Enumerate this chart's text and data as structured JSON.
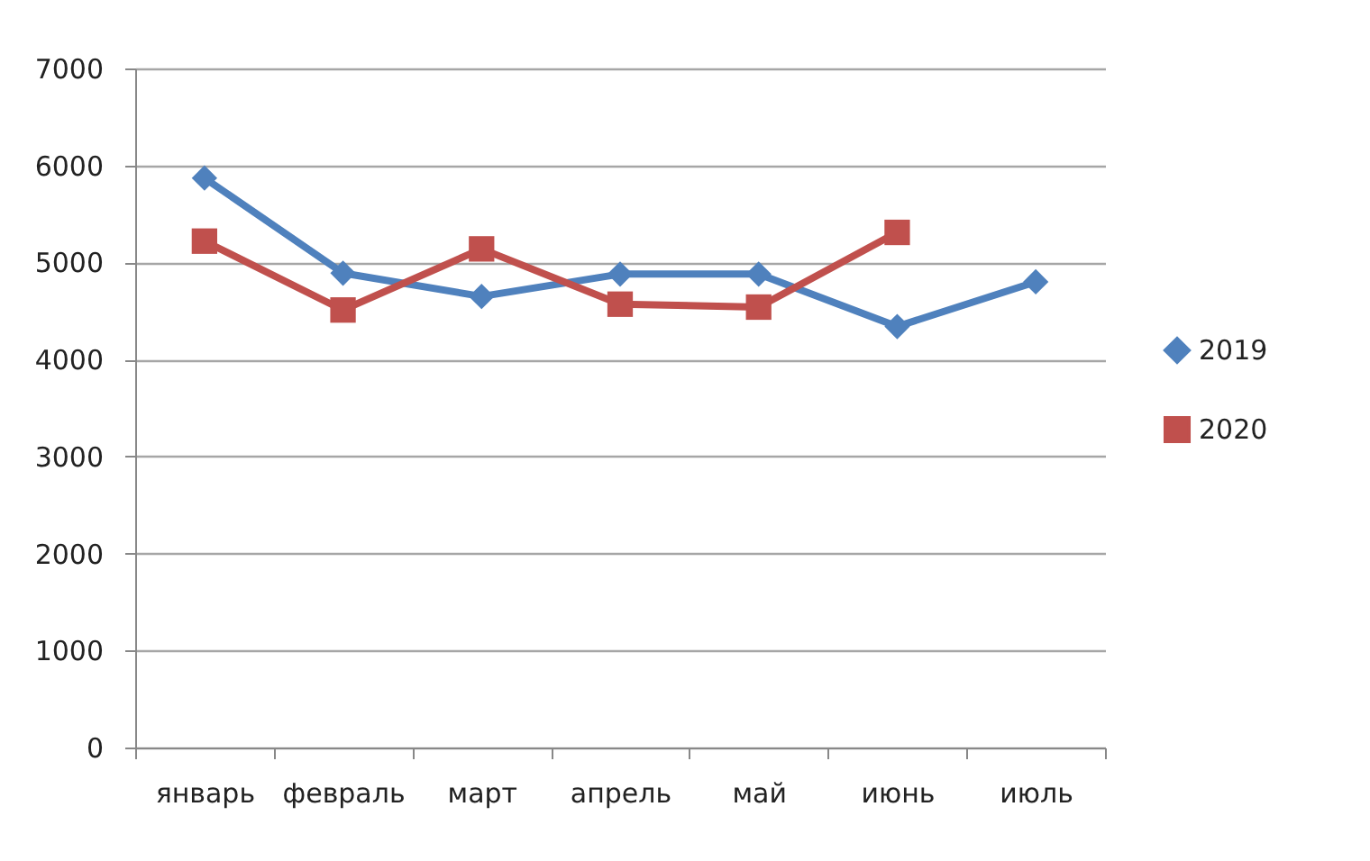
{
  "chart_data": {
    "type": "line",
    "categories": [
      "январь",
      "февраль",
      "март",
      "апрель",
      "май",
      "июнь",
      "июль"
    ],
    "series": [
      {
        "name": "2019",
        "color": "#4f81bd",
        "marker": "diamond",
        "values": [
          5870,
          4890,
          4650,
          4880,
          4880,
          4340,
          4800
        ]
      },
      {
        "name": "2020",
        "color": "#c0504d",
        "marker": "square",
        "values": [
          5220,
          4510,
          5140,
          4570,
          4540,
          5310,
          null
        ]
      }
    ],
    "ylim": [
      0,
      7000
    ],
    "yticks": [
      0,
      1000,
      2000,
      3000,
      4000,
      5000,
      6000,
      7000
    ],
    "grid": "y",
    "legend": "right",
    "line_style": "solid"
  }
}
